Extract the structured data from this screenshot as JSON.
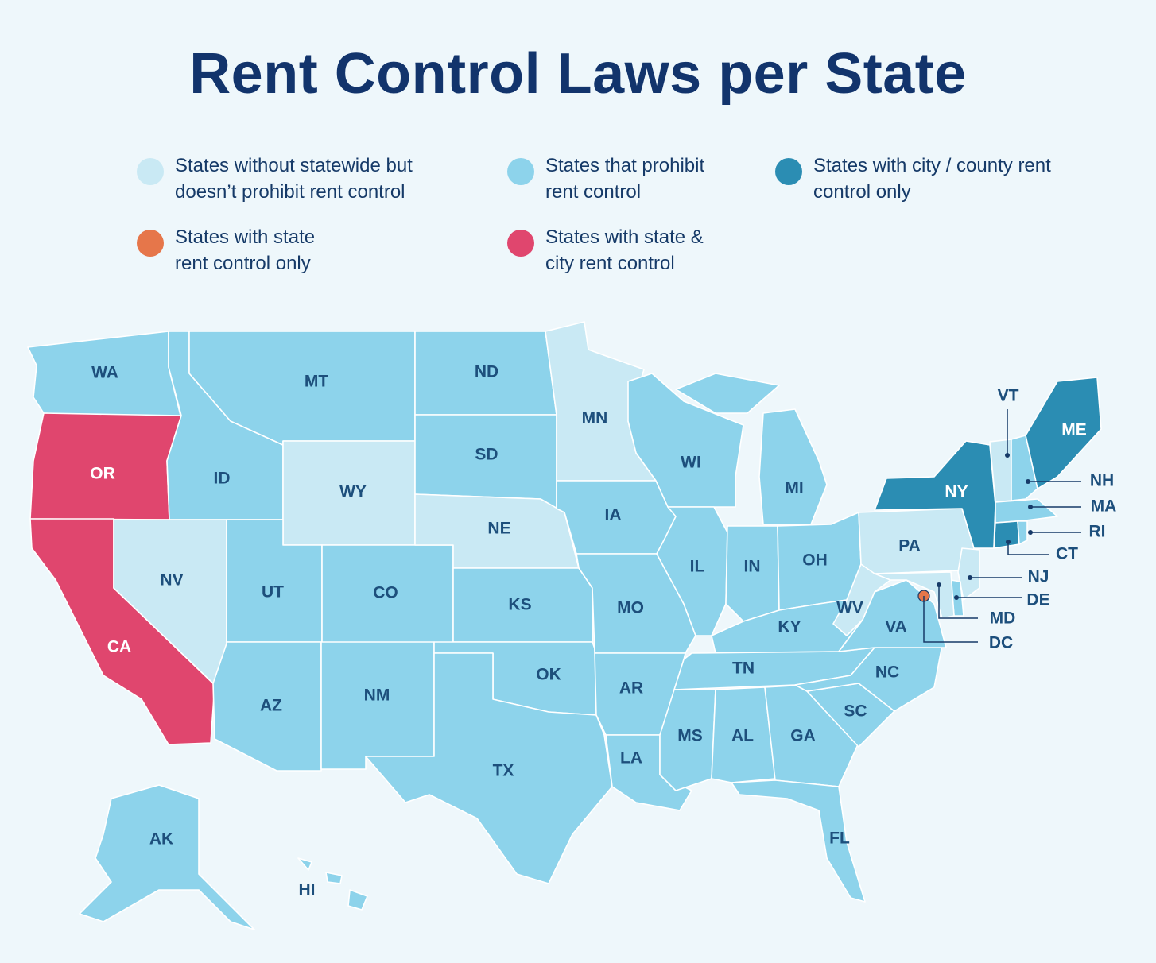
{
  "title": "Rent Control Laws per State",
  "colors": {
    "background": "#eef7fb",
    "no_statewide_no_prohibit": "#c9e9f4",
    "prohibit": "#8dd3eb",
    "city_county_only": "#2b8db3",
    "state_only": "#e6764a",
    "state_and_city": "#e0466e"
  },
  "legend": [
    {
      "label": "States without statewide but doesn’t prohibit rent control",
      "color_key": "no_statewide_no_prohibit"
    },
    {
      "label": "States that prohibit rent control",
      "color_key": "prohibit"
    },
    {
      "label": "States with city / county rent control only",
      "color_key": "city_county_only"
    },
    {
      "label": "States with state rent control only",
      "color_key": "state_only"
    },
    {
      "label": "States with state & city rent control",
      "color_key": "state_and_city"
    }
  ],
  "states": {
    "WA": "prohibit",
    "OR": "state_and_city",
    "CA": "state_and_city",
    "ID": "prohibit",
    "NV": "no_statewide_no_prohibit",
    "MT": "prohibit",
    "WY": "no_statewide_no_prohibit",
    "UT": "prohibit",
    "AZ": "prohibit",
    "CO": "prohibit",
    "NM": "prohibit",
    "ND": "prohibit",
    "SD": "prohibit",
    "NE": "no_statewide_no_prohibit",
    "KS": "prohibit",
    "OK": "prohibit",
    "TX": "prohibit",
    "MN": "no_statewide_no_prohibit",
    "IA": "prohibit",
    "MO": "prohibit",
    "AR": "prohibit",
    "LA": "prohibit",
    "WI": "prohibit",
    "IL": "prohibit",
    "MI": "prohibit",
    "IN": "prohibit",
    "OH": "prohibit",
    "KY": "prohibit",
    "TN": "prohibit",
    "MS": "prohibit",
    "AL": "prohibit",
    "GA": "prohibit",
    "FL": "prohibit",
    "SC": "prohibit",
    "NC": "prohibit",
    "VA": "prohibit",
    "WV": "no_statewide_no_prohibit",
    "PA": "no_statewide_no_prohibit",
    "NY": "city_county_only",
    "VT": "no_statewide_no_prohibit",
    "NH": "prohibit",
    "ME": "city_county_only",
    "MA": "prohibit",
    "RI": "prohibit",
    "CT": "city_county_only",
    "NJ": "no_statewide_no_prohibit",
    "DE": "prohibit",
    "MD": "no_statewide_no_prohibit",
    "DC": "state_only",
    "AK": "prohibit",
    "HI": "prohibit"
  },
  "callout_labels": [
    "VT",
    "NH",
    "MA",
    "RI",
    "CT",
    "NJ",
    "DE",
    "MD",
    "DC"
  ]
}
